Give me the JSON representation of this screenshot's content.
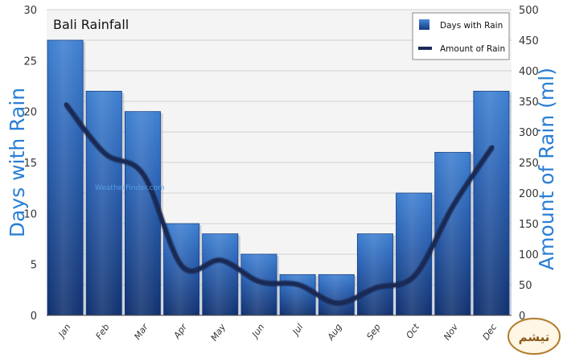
{
  "chart_data": {
    "type": "bar",
    "title": "Bali Rainfall",
    "categories": [
      "Jan",
      "Feb",
      "Mar",
      "Apr",
      "May",
      "Jun",
      "Jul",
      "Aug",
      "Sep",
      "Oct",
      "Nov",
      "Dec"
    ],
    "series": [
      {
        "name": "Days with Rain",
        "type": "bar",
        "axis": "left",
        "values": [
          27,
          22,
          20,
          9,
          8,
          6,
          4,
          4,
          8,
          12,
          16,
          22
        ]
      },
      {
        "name": "Amount of Rain",
        "type": "line",
        "axis": "right",
        "values": [
          345,
          265,
          230,
          80,
          90,
          55,
          50,
          20,
          45,
          65,
          180,
          275
        ]
      }
    ],
    "ylabel": "Days with Rain",
    "y2label": "Amount of Rain (ml)",
    "ylim": [
      0,
      30
    ],
    "y2lim": [
      0,
      500
    ],
    "yticks": [
      "0",
      "5",
      "10",
      "15",
      "20",
      "25",
      "30"
    ],
    "y2ticks": [
      "0",
      "50",
      "100",
      "150",
      "200",
      "250",
      "300",
      "350",
      "400",
      "450",
      "500"
    ],
    "legend": "top-right",
    "grid": true,
    "watermark": "WeatherFinder.com",
    "colors": {
      "bar": "#1e4f9e",
      "line": "#1a2a55",
      "axis_title": "#2a7fd4"
    }
  },
  "logo": {
    "text": "تیشم",
    "name": "logo"
  }
}
